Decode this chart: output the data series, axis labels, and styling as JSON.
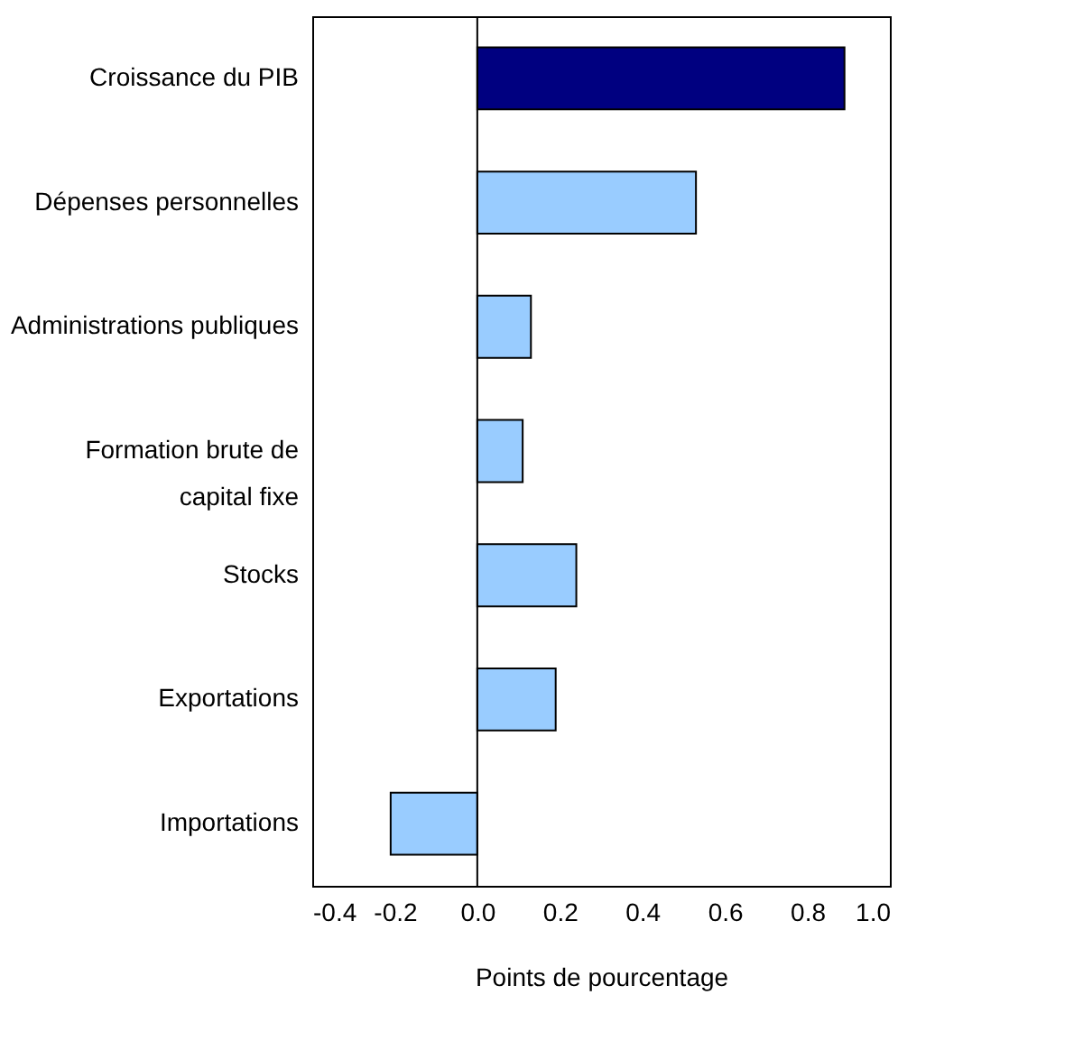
{
  "chart_data": {
    "type": "bar",
    "orientation": "horizontal",
    "categories": [
      "Croissance du PIB",
      "Dépenses personnelles",
      "Administrations publiques",
      "Formation brute de\ncapital fixe",
      "Stocks",
      "Exportations",
      "Importations"
    ],
    "values": [
      0.89,
      0.53,
      0.13,
      0.11,
      0.24,
      0.19,
      -0.21
    ],
    "colors": [
      "#000080",
      "#99ccff",
      "#99ccff",
      "#99ccff",
      "#99ccff",
      "#99ccff",
      "#99ccff"
    ],
    "xlim": [
      -0.4,
      1.0
    ],
    "xticks": [
      {
        "value": -0.4,
        "label": "-0.4"
      },
      {
        "value": -0.2,
        "label": "-0.2"
      },
      {
        "value": 0.0,
        "label": "0.0"
      },
      {
        "value": 0.2,
        "label": "0.2"
      },
      {
        "value": 0.4,
        "label": "0.4"
      },
      {
        "value": 0.6,
        "label": "0.6"
      },
      {
        "value": 0.8,
        "label": "0.8"
      },
      {
        "value": 1.0,
        "label": "1.0"
      }
    ],
    "xlabel": "Points de pourcentage",
    "ref_lines": [
      {
        "axis": "x",
        "value": 0,
        "color": "#000000"
      }
    ],
    "grid": false
  }
}
